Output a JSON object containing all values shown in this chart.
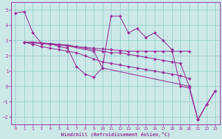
{
  "bg_color": "#cce8e8",
  "line_color": "#993399",
  "grid_color": "#99cccc",
  "xlabel": "Windchill (Refroidissement éolien,°C)",
  "xlim": [
    -0.5,
    23.5
  ],
  "ylim": [
    -2.5,
    5.5
  ],
  "xticks": [
    0,
    1,
    2,
    3,
    4,
    5,
    6,
    7,
    8,
    9,
    10,
    11,
    12,
    13,
    14,
    15,
    16,
    17,
    18,
    19,
    20,
    21,
    22,
    23
  ],
  "yticks": [
    -2,
    -1,
    0,
    1,
    2,
    3,
    4,
    5
  ],
  "series": [
    {
      "x": [
        0,
        1,
        2,
        3,
        4,
        5,
        6,
        7,
        8,
        9,
        10,
        11,
        12,
        13,
        14,
        15,
        16,
        17,
        18,
        19,
        20,
        21,
        22,
        23
      ],
      "y": [
        4.8,
        4.9,
        3.5,
        2.8,
        2.8,
        2.6,
        2.5,
        1.3,
        0.8,
        0.6,
        1.2,
        4.6,
        4.6,
        3.5,
        3.8,
        3.2,
        3.5,
        3.0,
        2.4,
        0.0,
        -0.1,
        -2.2,
        -1.2,
        -0.3
      ]
    },
    {
      "x": [
        1,
        2,
        3,
        4,
        5,
        6,
        7,
        8,
        9,
        10,
        11,
        12,
        13,
        14,
        15,
        16,
        17,
        18,
        19,
        20,
        21,
        22,
        23
      ],
      "y": [
        2.9,
        2.9,
        2.85,
        2.8,
        2.75,
        2.7,
        2.6,
        2.5,
        2.4,
        2.3,
        2.2,
        2.2,
        2.1,
        2.0,
        1.9,
        1.8,
        1.7,
        1.6,
        1.5,
        0.0,
        -2.2,
        -1.2,
        -0.3
      ]
    },
    {
      "x": [
        1,
        2,
        3,
        4,
        5,
        6,
        7,
        8,
        9,
        10,
        11,
        12,
        13,
        14,
        15,
        16,
        17,
        18,
        19,
        20
      ],
      "y": [
        2.9,
        2.85,
        2.8,
        2.75,
        2.7,
        2.65,
        2.6,
        2.55,
        2.5,
        2.45,
        2.4,
        2.35,
        2.3,
        2.3,
        2.3,
        2.3,
        2.3,
        2.3,
        2.3,
        2.3
      ]
    },
    {
      "x": [
        1,
        2,
        3,
        4,
        5,
        6,
        7,
        8,
        9,
        10,
        11,
        12,
        13,
        14,
        15,
        16,
        17,
        18,
        19,
        20
      ],
      "y": [
        2.9,
        2.75,
        2.6,
        2.5,
        2.4,
        2.3,
        2.2,
        2.0,
        1.8,
        1.6,
        1.5,
        1.4,
        1.3,
        1.2,
        1.1,
        1.0,
        0.9,
        0.8,
        0.7,
        0.5
      ]
    },
    {
      "comment": "short lines: (1,3)-(6,2.7) jump to (9,2.3)-(10,1.2) jump to (20,0)-(21,-2.2)-(22,-1.2)-(23,-0.3)",
      "x": [
        1,
        5,
        6,
        9,
        10,
        20,
        21,
        22,
        23
      ],
      "y": [
        2.9,
        2.75,
        2.65,
        2.3,
        1.2,
        0.0,
        -2.2,
        -1.2,
        -0.3
      ]
    }
  ]
}
